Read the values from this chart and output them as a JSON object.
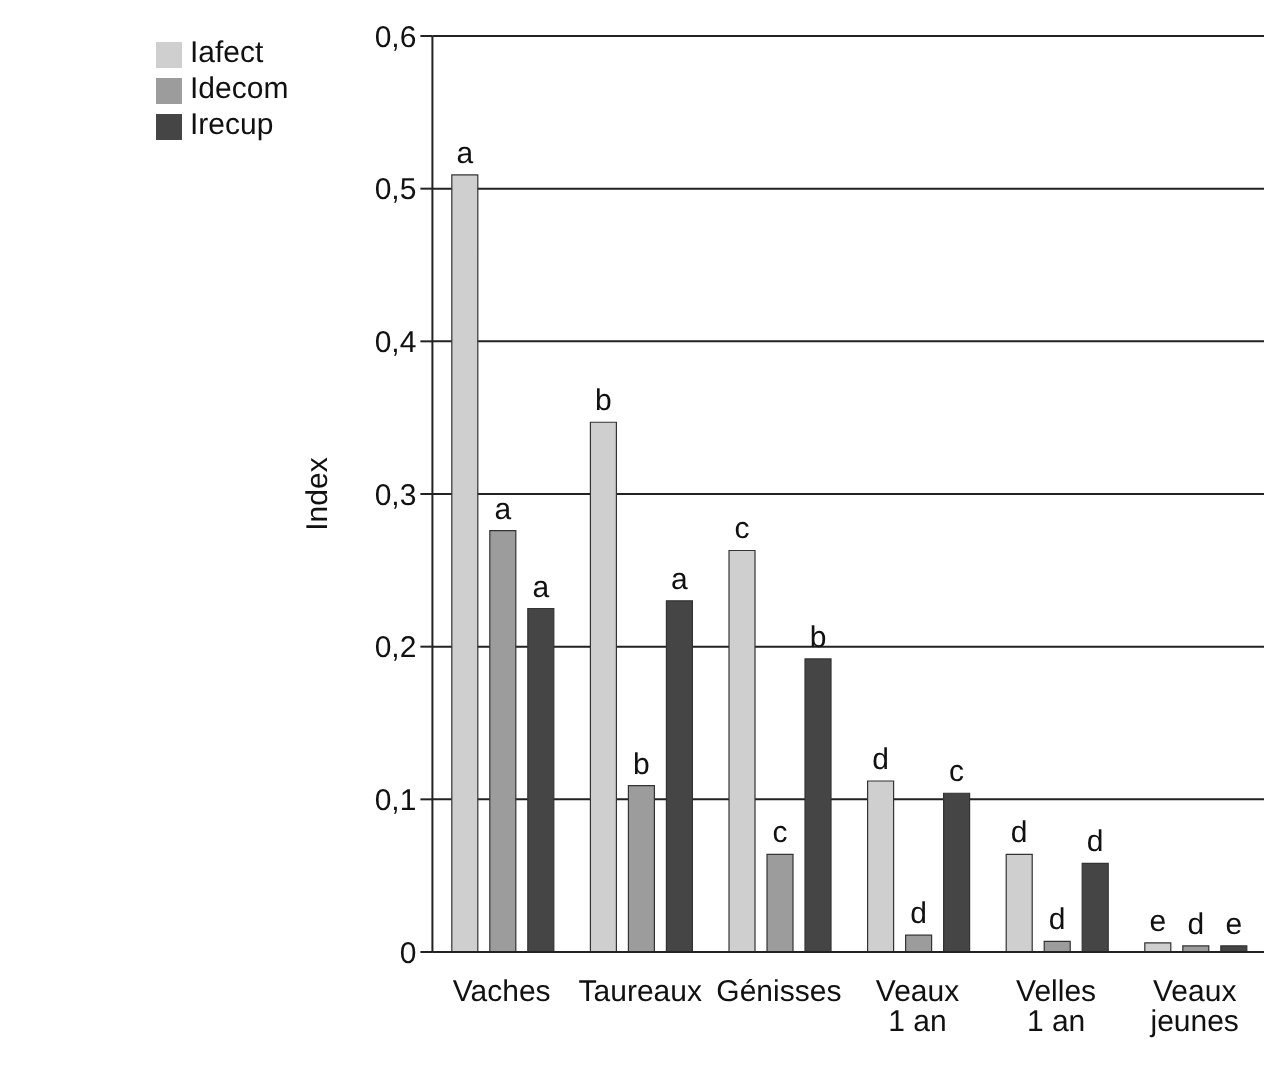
{
  "chart_data": {
    "type": "bar",
    "ylabel": "Index",
    "categories": [
      "Vaches",
      "Taureaux",
      "Génisses",
      "Veaux 1 an",
      "Velles 1 an",
      "Veaux jeunes"
    ],
    "series": [
      {
        "name": "Iafect",
        "color": "#cfcfcf",
        "values": [
          0.509,
          0.347,
          0.263,
          0.112,
          0.064,
          0.006
        ],
        "value_labels": [
          "a",
          "b",
          "c",
          "d",
          "d",
          "e"
        ]
      },
      {
        "name": "Idecom",
        "color": "#9c9c9c",
        "values": [
          0.276,
          0.109,
          0.064,
          0.011,
          0.007,
          0.004
        ],
        "value_labels": [
          "a",
          "b",
          "c",
          "d",
          "d",
          "d"
        ]
      },
      {
        "name": "Irecup",
        "color": "#454545",
        "values": [
          0.225,
          0.23,
          0.192,
          0.104,
          0.058,
          0.004
        ],
        "value_labels": [
          "a",
          "a",
          "b",
          "c",
          "d",
          "e"
        ]
      }
    ],
    "ylim": [
      0,
      0.6
    ],
    "yticks": [
      {
        "value": 0,
        "label": "0"
      },
      {
        "value": 0.1,
        "label": "0,1"
      },
      {
        "value": 0.2,
        "label": "0,2"
      },
      {
        "value": 0.3,
        "label": "0,3"
      },
      {
        "value": 0.4,
        "label": "0,4"
      },
      {
        "value": 0.5,
        "label": "0,5"
      },
      {
        "value": 0.6,
        "label": "0,6"
      }
    ],
    "grid": "y",
    "legend": "top left"
  }
}
